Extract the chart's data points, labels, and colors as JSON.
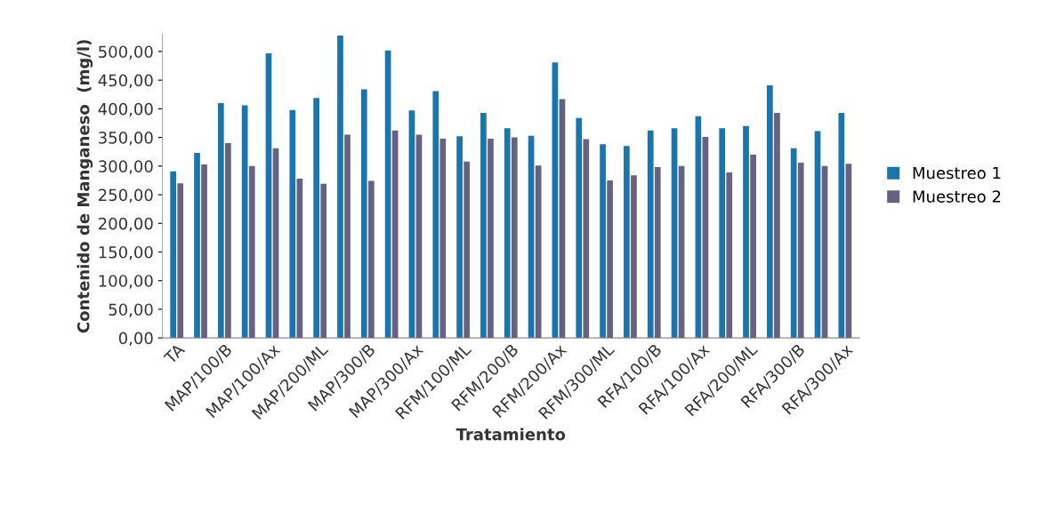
{
  "chart_data": {
    "type": "bar",
    "xlabel": "Tratamiento",
    "ylabel": "Contenido de Manganeso  (mg/l)",
    "categories": [
      "TA",
      null,
      "MAP/100/B",
      null,
      "MAP/100/Ax",
      null,
      "MAP/200/ML",
      null,
      "MAP/300/B",
      null,
      "MAP/300/Ax",
      null,
      "RFM/100/ML",
      null,
      "RFM/200/B",
      null,
      "RFM/200/Ax",
      null,
      "RFM/300/ML",
      null,
      "RFA/100/B",
      null,
      "RFA/100/Ax",
      null,
      "RFA/200/ML",
      null,
      "RFA/300/B",
      null,
      "RFA/300/Ax"
    ],
    "series": [
      {
        "name": "Muestreo 1",
        "color": "#1a75ad",
        "values": [
          291,
          323,
          410,
          406,
          497,
          398,
          419,
          528,
          434,
          502,
          397,
          431,
          352,
          393,
          366,
          353,
          481,
          384,
          338,
          335,
          362,
          366,
          387,
          366,
          370,
          441,
          331,
          361,
          393
        ]
      },
      {
        "name": "Muestreo 2",
        "color": "#676281",
        "values": [
          270,
          303,
          340,
          300,
          331,
          278,
          269,
          355,
          274,
          362,
          355,
          348,
          308,
          348,
          350,
          301,
          417,
          347,
          275,
          284,
          298,
          300,
          351,
          289,
          320,
          393,
          306,
          300,
          304
        ]
      }
    ],
    "ylim": [
      0,
      530
    ],
    "yticks": [
      {
        "value": 0,
        "label": "0,00"
      },
      {
        "value": 50,
        "label": "50,00"
      },
      {
        "value": 100,
        "label": "100,00"
      },
      {
        "value": 150,
        "label": "150,00"
      },
      {
        "value": 200,
        "label": "200,00"
      },
      {
        "value": 250,
        "label": "250,00"
      },
      {
        "value": 300,
        "label": "300,00"
      },
      {
        "value": 350,
        "label": "350,00"
      },
      {
        "value": 400,
        "label": "400,00"
      },
      {
        "value": 450,
        "label": "450,00"
      },
      {
        "value": 500,
        "label": "500,00"
      }
    ],
    "grid": false,
    "legend": "right"
  }
}
